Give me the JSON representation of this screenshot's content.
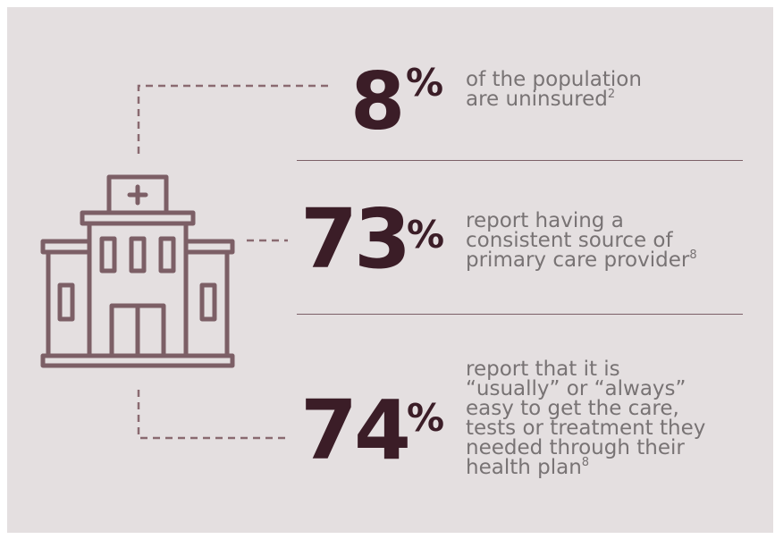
{
  "colors": {
    "background": "#e4dfe0",
    "accent": "#3b1d27",
    "text_muted": "#787374",
    "icon_stroke": "#7c5f66"
  },
  "icon": "hospital-building-icon",
  "stats": [
    {
      "value": "8",
      "unit": "%",
      "lines": [
        "of the population",
        "are uninsured"
      ],
      "footnote": "2"
    },
    {
      "value": "73",
      "unit": "%",
      "lines": [
        "report having a",
        "consistent source of",
        "primary care provider"
      ],
      "footnote": "8"
    },
    {
      "value": "74",
      "unit": "%",
      "lines": [
        "report that it is",
        "“usually” or “always”",
        "easy to get the care,",
        "tests or treatment they",
        "needed through their",
        "health plan"
      ],
      "footnote": "8"
    }
  ]
}
